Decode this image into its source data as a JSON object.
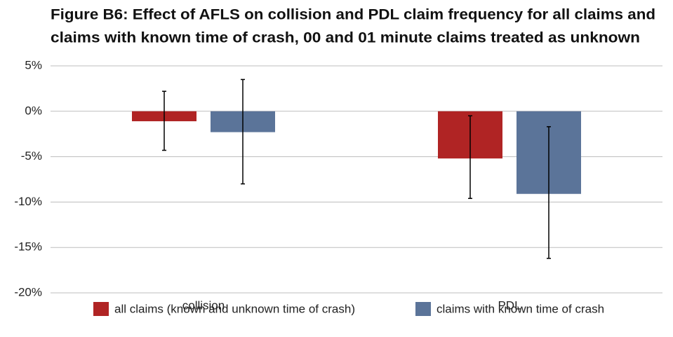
{
  "chart_data": {
    "type": "bar",
    "title": [
      "Figure B6: Effect of AFLS on collision and PDL claim frequency for all claims and",
      "claims with known time of crash, 00 and 01 minute claims treated as unknown"
    ],
    "categories": [
      "collision",
      "PDL"
    ],
    "series": [
      {
        "name": "all claims (known and unknown time of crash)",
        "color": "#b02424",
        "values": [
          -1.1,
          -5.2
        ],
        "ci_low": [
          -4.3,
          -9.6
        ],
        "ci_high": [
          2.2,
          -0.5
        ]
      },
      {
        "name": "claims with known time of crash",
        "color": "#5b7499",
        "values": [
          -2.3,
          -9.1
        ],
        "ci_low": [
          -8.0,
          -16.2
        ],
        "ci_high": [
          3.5,
          -1.7
        ]
      }
    ],
    "ylim": [
      -20,
      5
    ],
    "yticks": [
      {
        "value": -20,
        "label": "-20%"
      },
      {
        "value": -15,
        "label": "-15%"
      },
      {
        "value": -10,
        "label": "-10%"
      },
      {
        "value": -5,
        "label": "-5%"
      },
      {
        "value": 0,
        "label": "0%"
      },
      {
        "value": 5,
        "label": "5%"
      }
    ],
    "grid": true,
    "legend": "bottom"
  }
}
